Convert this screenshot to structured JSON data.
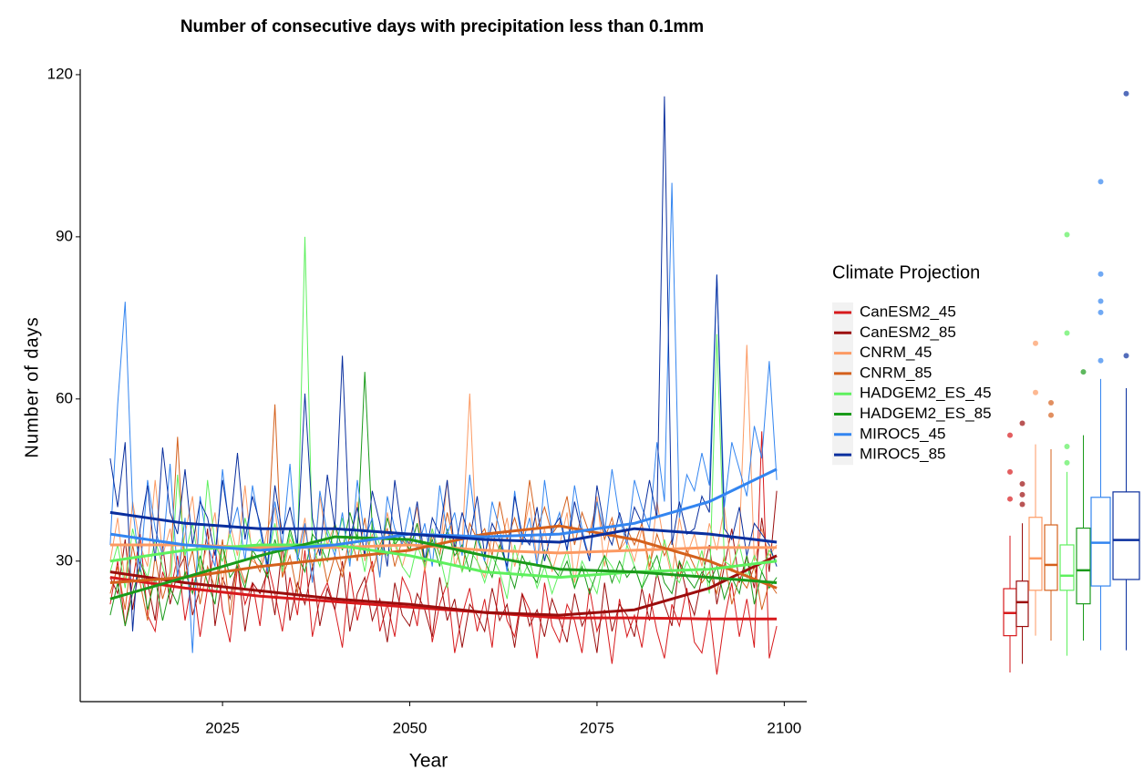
{
  "chart_data": {
    "type": "line",
    "title": "Number of consecutive days with precipitation less than 0.1mm",
    "x_label": "Year",
    "y_label": "Number of days",
    "legend_title": "Climate Projection",
    "legend": "right",
    "grid": false,
    "xlim": [
      2006,
      2103
    ],
    "ylim": [
      4,
      121
    ],
    "xticks": [
      2025,
      2050,
      2075,
      2100
    ],
    "yticks": [
      30,
      60,
      90,
      120
    ],
    "x": [
      2010,
      2011,
      2012,
      2013,
      2014,
      2015,
      2016,
      2017,
      2018,
      2019,
      2020,
      2021,
      2022,
      2023,
      2024,
      2025,
      2026,
      2027,
      2028,
      2029,
      2030,
      2031,
      2032,
      2033,
      2034,
      2035,
      2036,
      2037,
      2038,
      2039,
      2040,
      2041,
      2042,
      2043,
      2044,
      2045,
      2046,
      2047,
      2048,
      2049,
      2050,
      2051,
      2052,
      2053,
      2054,
      2055,
      2056,
      2057,
      2058,
      2059,
      2060,
      2061,
      2062,
      2063,
      2064,
      2065,
      2066,
      2067,
      2068,
      2069,
      2070,
      2071,
      2072,
      2073,
      2074,
      2075,
      2076,
      2077,
      2078,
      2079,
      2080,
      2081,
      2082,
      2083,
      2084,
      2085,
      2086,
      2087,
      2088,
      2089,
      2090,
      2091,
      2092,
      2093,
      2094,
      2095,
      2096,
      2097,
      2098,
      2099
    ],
    "trend_x": [
      2010,
      2020,
      2030,
      2040,
      2050,
      2060,
      2070,
      2080,
      2090,
      2099
    ],
    "series": [
      {
        "name": "CanESM2_45",
        "color": "#d7191c",
        "values": [
          22,
          30,
          18,
          26,
          35,
          20,
          17,
          28,
          24,
          31,
          19,
          27,
          16,
          25,
          33,
          21,
          15,
          29,
          22,
          26,
          18,
          30,
          24,
          17,
          27,
          20,
          32,
          16,
          23,
          26,
          21,
          14,
          28,
          19,
          25,
          30,
          17,
          22,
          16,
          27,
          24,
          18,
          29,
          15,
          22,
          26,
          13,
          20,
          25,
          17,
          23,
          14,
          27,
          19,
          16,
          24,
          21,
          12,
          26,
          18,
          15,
          22,
          19,
          13,
          25,
          17,
          21,
          11,
          23,
          16,
          20,
          14,
          24,
          17,
          12,
          22,
          18,
          25,
          15,
          13,
          21,
          9,
          19,
          26,
          16,
          23,
          14,
          54,
          12,
          18
        ],
        "trend": [
          27,
          25,
          23.5,
          22.5,
          21.5,
          20.5,
          19.5,
          19.5,
          19.3,
          19.3
        ],
        "box": {
          "min": 9.4,
          "q1": 16.2,
          "median": 20.4,
          "q3": 24.9,
          "max": 34.7,
          "outliers": [
            41.5,
            46.5,
            53.3
          ]
        }
      },
      {
        "name": "CanESM2_85",
        "color": "#9b0d0d",
        "values": [
          27,
          24,
          34,
          21,
          30,
          26,
          19,
          33,
          22,
          28,
          31,
          20,
          25,
          36,
          18,
          27,
          23,
          30,
          17,
          26,
          24,
          28,
          20,
          33,
          19,
          26,
          22,
          29,
          18,
          25,
          21,
          30,
          17,
          24,
          27,
          19,
          23,
          15,
          26,
          20,
          18,
          24,
          21,
          16,
          27,
          19,
          23,
          14,
          22,
          20,
          17,
          25,
          19,
          22,
          14,
          24,
          18,
          21,
          16,
          23,
          19,
          15,
          24,
          18,
          21,
          13,
          26,
          17,
          22,
          20,
          16,
          25,
          19,
          28,
          22,
          18,
          30,
          24,
          20,
          27,
          33,
          22,
          29,
          36,
          26,
          31,
          25,
          38,
          28,
          43
        ],
        "trend": [
          28,
          26,
          24.5,
          23,
          22,
          20.5,
          20,
          21,
          25,
          31
        ],
        "box": {
          "min": 11,
          "q1": 17.9,
          "median": 22.4,
          "q3": 26.3,
          "max": 37,
          "outliers": [
            40.5,
            42.3,
            44.3,
            55.5
          ]
        }
      },
      {
        "name": "CNRM_45",
        "color": "#fc9a63",
        "values": [
          30,
          38,
          26,
          41,
          33,
          29,
          45,
          31,
          36,
          27,
          35,
          42,
          28,
          33,
          39,
          25,
          37,
          31,
          44,
          30,
          29,
          36,
          40,
          27,
          34,
          31,
          38,
          26,
          42,
          33,
          37,
          28,
          32,
          41,
          30,
          35,
          27,
          39,
          33,
          29,
          34,
          40,
          28,
          36,
          31,
          45,
          29,
          33,
          61,
          30,
          27,
          35,
          32,
          38,
          29,
          34,
          41,
          30,
          36,
          28,
          33,
          39,
          26,
          35,
          31,
          42,
          29,
          37,
          32,
          34,
          30,
          36,
          28,
          41,
          33,
          27,
          38,
          31,
          35,
          29,
          37,
          32,
          40,
          28,
          34,
          70,
          30,
          36,
          31,
          33
        ],
        "trend": [
          33,
          33,
          32.5,
          32.5,
          33,
          32,
          31.5,
          32,
          32.5,
          32.5
        ],
        "box": {
          "min": 16.2,
          "q1": 24.6,
          "median": 30.5,
          "q3": 38.1,
          "max": 51.6,
          "outliers": [
            61.2,
            70.3
          ]
        }
      },
      {
        "name": "CNRM_85",
        "color": "#d4601c",
        "values": [
          24,
          29,
          21,
          33,
          26,
          19,
          31,
          23,
          28,
          53,
          27,
          32,
          22,
          29,
          25,
          34,
          20,
          30,
          26,
          31,
          28,
          33,
          59,
          27,
          31,
          24,
          36,
          29,
          33,
          26,
          31,
          27,
          35,
          30,
          38,
          28,
          33,
          36,
          29,
          34,
          32,
          37,
          29,
          35,
          31,
          39,
          33,
          28,
          37,
          34,
          36,
          31,
          41,
          34,
          38,
          33,
          45,
          36,
          40,
          35,
          37,
          42,
          33,
          39,
          35,
          41,
          34,
          38,
          32,
          36,
          33,
          37,
          29,
          35,
          31,
          34,
          27,
          32,
          29,
          26,
          28,
          24,
          31,
          22,
          27,
          25,
          29,
          21,
          26,
          24
        ],
        "trend": [
          26,
          27,
          29,
          30.5,
          32,
          35,
          36.5,
          34,
          30,
          25
        ],
        "box": {
          "min": 15.3,
          "q1": 24.6,
          "median": 29.3,
          "q3": 36.7,
          "max": 50.7,
          "outliers": [
            57,
            59.3
          ]
        }
      },
      {
        "name": "HADGEM2_ES_45",
        "color": "#5ef05e",
        "values": [
          28,
          33,
          25,
          36,
          30,
          27,
          34,
          29,
          24,
          46,
          31,
          37,
          28,
          45,
          33,
          30,
          35,
          29,
          38,
          32,
          34,
          30,
          37,
          28,
          35,
          31,
          90,
          33,
          29,
          36,
          32,
          38,
          30,
          35,
          28,
          37,
          33,
          31,
          34,
          29,
          27,
          33,
          29,
          36,
          31,
          25,
          34,
          28,
          32,
          30,
          26,
          31,
          28,
          23,
          33,
          27,
          30,
          25,
          29,
          24,
          28,
          32,
          25,
          30,
          27,
          24,
          31,
          29,
          26,
          33,
          29,
          25,
          31,
          27,
          34,
          28,
          26,
          30,
          27,
          32,
          24,
          72,
          30,
          29,
          33,
          27,
          31,
          28,
          32,
          30
        ],
        "trend": [
          30,
          32,
          33,
          33,
          31,
          28,
          27,
          28,
          28.5,
          30
        ],
        "box": {
          "min": 12.5,
          "q1": 24.6,
          "median": 27.3,
          "q3": 33,
          "max": 46.5,
          "outliers": [
            48.2,
            51.2,
            72.2,
            90.4
          ]
        }
      },
      {
        "name": "HADGEM2_ES_85",
        "color": "#1a9a1a",
        "values": [
          20,
          26,
          18,
          24,
          29,
          21,
          27,
          19,
          25,
          22,
          28,
          24,
          31,
          26,
          22,
          33,
          27,
          29,
          25,
          32,
          30,
          27,
          34,
          29,
          36,
          31,
          28,
          35,
          33,
          30,
          37,
          32,
          39,
          34,
          65,
          36,
          31,
          38,
          33,
          35,
          32,
          37,
          30,
          34,
          29,
          36,
          31,
          33,
          28,
          35,
          30,
          27,
          33,
          29,
          25,
          31,
          28,
          26,
          32,
          29,
          27,
          30,
          25,
          29,
          24,
          28,
          31,
          26,
          30,
          27,
          29,
          25,
          28,
          31,
          26,
          24,
          30,
          27,
          25,
          28,
          26,
          29,
          23,
          27,
          24,
          31,
          22,
          28,
          25,
          27
        ],
        "trend": [
          23,
          27,
          31,
          34.5,
          34,
          31,
          28.5,
          28,
          27,
          26
        ],
        "box": {
          "min": 15.3,
          "q1": 22.1,
          "median": 28.3,
          "q3": 36.1,
          "max": 53.3,
          "outliers": [
            65
          ]
        }
      },
      {
        "name": "MIROC5_45",
        "color": "#3385f0",
        "values": [
          33,
          59,
          78,
          40,
          28,
          45,
          36,
          31,
          48,
          27,
          38,
          13,
          42,
          33,
          29,
          47,
          35,
          40,
          30,
          44,
          36,
          28,
          41,
          33,
          48,
          30,
          37,
          26,
          43,
          35,
          31,
          39,
          29,
          45,
          34,
          38,
          27,
          42,
          36,
          33,
          40,
          32,
          37,
          29,
          44,
          35,
          39,
          31,
          46,
          34,
          30,
          41,
          36,
          28,
          43,
          33,
          38,
          29,
          45,
          35,
          39,
          32,
          44,
          36,
          30,
          41,
          35,
          47,
          38,
          33,
          45,
          40,
          36,
          52,
          41,
          100,
          38,
          46,
          43,
          50,
          44,
          83,
          40,
          52,
          47,
          42,
          55,
          49,
          67,
          45
        ],
        "trend": [
          35,
          33,
          32,
          33,
          35,
          34.5,
          35,
          37,
          41,
          47
        ],
        "box": {
          "min": 13.5,
          "q1": 25.4,
          "median": 33.4,
          "q3": 41.8,
          "max": 63.7,
          "outliers": [
            67.1,
            76,
            78.1,
            83.1,
            100.2
          ]
        }
      },
      {
        "name": "MIROC5_85",
        "color": "#0a2f9e",
        "values": [
          49,
          40,
          52,
          17,
          36,
          44,
          30,
          51,
          39,
          35,
          47,
          33,
          41,
          38,
          31,
          45,
          36,
          50,
          34,
          42,
          37,
          29,
          44,
          35,
          40,
          33,
          61,
          38,
          31,
          46,
          36,
          68,
          34,
          40,
          31,
          43,
          37,
          29,
          45,
          35,
          33,
          41,
          30,
          38,
          35,
          45,
          32,
          39,
          34,
          42,
          31,
          37,
          34,
          29,
          42,
          35,
          33,
          40,
          30,
          36,
          38,
          32,
          41,
          35,
          30,
          44,
          36,
          33,
          39,
          34,
          40,
          37,
          45,
          38,
          116,
          33,
          41,
          35,
          36,
          42,
          39,
          83,
          36,
          34,
          40,
          31,
          37,
          35,
          33,
          29
        ],
        "trend": [
          39,
          37,
          36,
          36,
          35,
          34,
          33.5,
          36,
          35,
          33.5
        ],
        "box": {
          "min": 13.5,
          "q1": 26.6,
          "median": 33.9,
          "q3": 42.8,
          "max": 62,
          "outliers": [
            68,
            116.5
          ]
        }
      }
    ]
  }
}
